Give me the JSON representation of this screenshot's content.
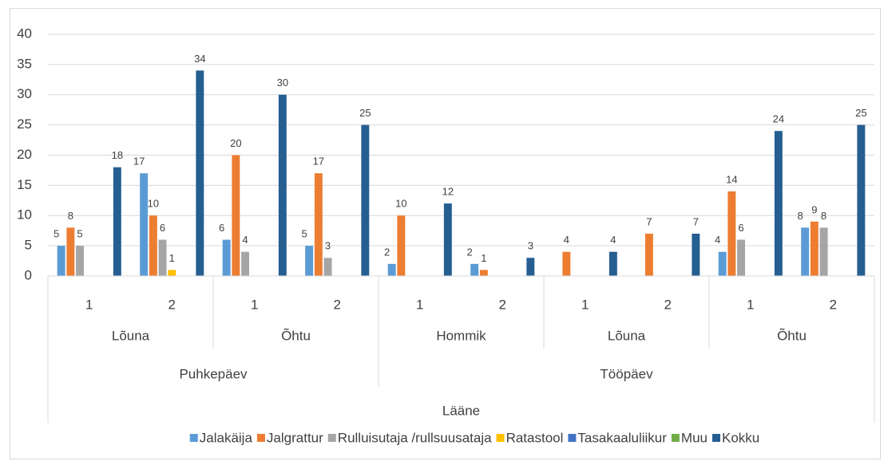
{
  "chart_data": {
    "type": "bar",
    "category_tree": {
      "name": "Lääne",
      "children": [
        {
          "name": "Puhkepäev",
          "children": [
            {
              "name": "Lõuna",
              "categories": [
                "1",
                "2"
              ]
            },
            {
              "name": "Õhtu",
              "categories": [
                "1",
                "2"
              ]
            }
          ]
        },
        {
          "name": "Tööpäev",
          "children": [
            {
              "name": "Hommik",
              "categories": [
                "1",
                "2"
              ]
            },
            {
              "name": "Lõuna",
              "categories": [
                "1",
                "2"
              ]
            },
            {
              "name": "Õhtu",
              "categories": [
                "1",
                "2"
              ]
            }
          ]
        }
      ]
    },
    "series": [
      {
        "name": "Jalakäija",
        "color": "#5b9bd5",
        "values": [
          5,
          17,
          6,
          5,
          2,
          2,
          null,
          null,
          4,
          8
        ]
      },
      {
        "name": "Jalgrattur",
        "color": "#ed7d31",
        "values": [
          8,
          10,
          20,
          17,
          10,
          1,
          4,
          7,
          14,
          9
        ]
      },
      {
        "name": "Rulluisutaja /rullsuusataja",
        "color": "#a5a5a5",
        "values": [
          5,
          6,
          4,
          3,
          null,
          null,
          null,
          null,
          6,
          8
        ]
      },
      {
        "name": "Ratastool",
        "color": "#ffc000",
        "values": [
          null,
          1,
          null,
          null,
          null,
          null,
          null,
          null,
          null,
          null
        ]
      },
      {
        "name": "Tasakaaluliikur",
        "color": "#4472c4",
        "values": [
          null,
          null,
          null,
          null,
          null,
          null,
          null,
          null,
          null,
          null
        ]
      },
      {
        "name": "Muu",
        "color": "#70ad47",
        "values": [
          null,
          null,
          null,
          null,
          null,
          null,
          null,
          null,
          null,
          null
        ]
      },
      {
        "name": "Kokku",
        "color": "#255e91",
        "values": [
          18,
          34,
          30,
          25,
          12,
          3,
          4,
          7,
          24,
          25
        ]
      }
    ],
    "ylim": [
      0,
      40
    ],
    "yticks": [
      0,
      5,
      10,
      15,
      20,
      25,
      30,
      35,
      40
    ],
    "grid": true,
    "legend": "bottom"
  }
}
